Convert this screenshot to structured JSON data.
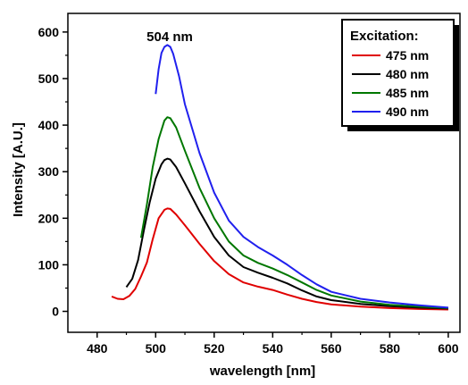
{
  "chart_data": {
    "type": "line",
    "xlabel": "wavelength [nm]",
    "ylabel": "Intensity [A.U.]",
    "xlim": [
      470,
      604
    ],
    "ylim": [
      -45,
      640
    ],
    "x_ticks": [
      480,
      500,
      520,
      540,
      560,
      580,
      600
    ],
    "y_ticks": [
      0,
      100,
      200,
      300,
      400,
      500,
      600
    ],
    "grid": false,
    "legend_position": "top-right",
    "legend_title": "Excitation:",
    "annotation": "504 nm",
    "series": [
      {
        "name": "475 nm",
        "color": "#e00000",
        "x": [
          485,
          487,
          489,
          491,
          493,
          495,
          497,
          499,
          501,
          503,
          504,
          505,
          507,
          510,
          515,
          520,
          525,
          530,
          535,
          540,
          545,
          550,
          555,
          560,
          570,
          580,
          590,
          600
        ],
        "y": [
          32,
          27,
          26,
          33,
          48,
          75,
          105,
          155,
          200,
          218,
          221,
          220,
          208,
          185,
          145,
          108,
          80,
          62,
          53,
          46,
          36,
          27,
          20,
          15,
          10,
          7,
          5,
          4
        ]
      },
      {
        "name": "480 nm",
        "color": "#000000",
        "x": [
          490,
          492,
          494,
          496,
          498,
          500,
          502,
          503,
          504,
          505,
          507,
          510,
          515,
          520,
          525,
          530,
          535,
          540,
          545,
          550,
          555,
          560,
          570,
          580,
          590,
          600
        ],
        "y": [
          52,
          70,
          110,
          175,
          235,
          285,
          316,
          325,
          328,
          326,
          310,
          275,
          215,
          160,
          120,
          95,
          83,
          72,
          60,
          45,
          32,
          24,
          16,
          11,
          8,
          6
        ]
      },
      {
        "name": "485 nm",
        "color": "#007700",
        "x": [
          495,
          497,
          499,
          501,
          503,
          504,
          505,
          507,
          510,
          515,
          520,
          525,
          530,
          535,
          540,
          545,
          550,
          555,
          560,
          570,
          580,
          590,
          600
        ],
        "y": [
          158,
          230,
          310,
          370,
          410,
          417,
          415,
          395,
          345,
          265,
          200,
          150,
          120,
          104,
          92,
          78,
          62,
          46,
          34,
          21,
          14,
          10,
          7
        ]
      },
      {
        "name": "490 nm",
        "color": "#2020ee",
        "x": [
          500,
          501,
          502,
          503,
          504,
          505,
          506,
          508,
          510,
          515,
          520,
          525,
          530,
          535,
          540,
          545,
          550,
          555,
          560,
          570,
          580,
          590,
          600
        ],
        "y": [
          467,
          520,
          555,
          568,
          572,
          568,
          553,
          505,
          445,
          340,
          255,
          195,
          160,
          138,
          120,
          100,
          78,
          58,
          42,
          27,
          19,
          13,
          8
        ]
      }
    ]
  }
}
